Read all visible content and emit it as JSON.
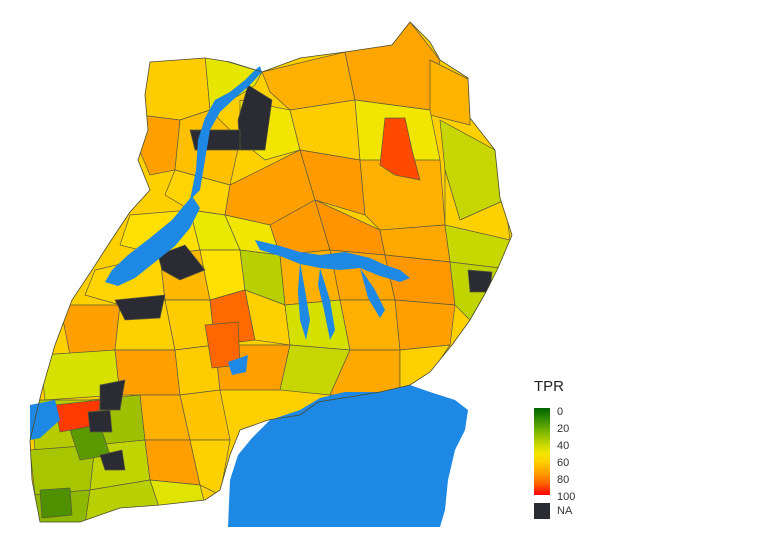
{
  "legend": {
    "title": "TPR",
    "ticks": [
      "0",
      "20",
      "40",
      "60",
      "80",
      "100"
    ],
    "na_label": "NA",
    "scale_colors": [
      "#006400",
      "#7fb800",
      "#f2e600",
      "#ffd000",
      "#ff9a00",
      "#ff0000"
    ],
    "na_color": "#2b2b33"
  },
  "map": {
    "water_color": "#1e88e5",
    "border_color": "#5b5b3a"
  }
}
